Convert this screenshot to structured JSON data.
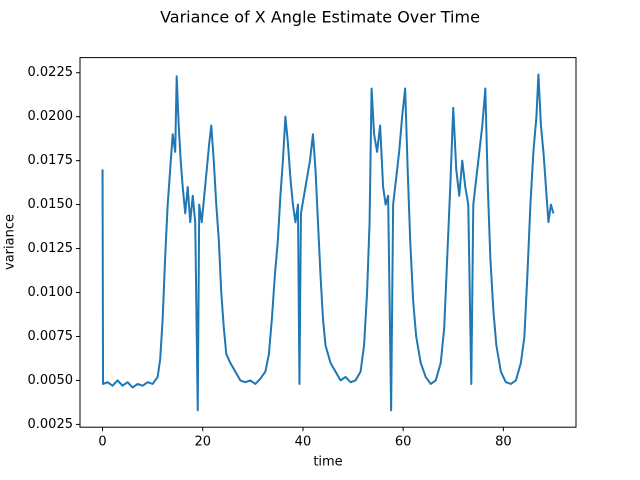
{
  "chart_data": {
    "type": "line",
    "title": "Variance of X Angle Estimate Over Time",
    "x_label": "time",
    "y_label": "variance",
    "x": [
      0,
      0.1,
      1,
      2,
      3,
      4,
      5,
      6,
      7,
      8,
      9,
      10,
      11,
      11.5,
      12,
      12.5,
      13,
      13.5,
      14,
      14.5,
      14.8,
      15.2,
      15.6,
      16,
      16.5,
      17,
      17.5,
      18,
      18.5,
      19,
      19.3,
      19.8,
      20.3,
      20.8,
      21.3,
      21.7,
      22.2,
      22.7,
      23.2,
      23.7,
      24.2,
      24.7,
      25.5,
      26.5,
      27.5,
      28.5,
      29.5,
      30.5,
      31.5,
      32.5,
      33.2,
      33.8,
      34.4,
      35,
      35.5,
      36,
      36.5,
      37,
      37.5,
      38,
      38.5,
      39,
      39.3,
      39.6,
      40.2,
      40.8,
      41.4,
      42,
      42.5,
      43,
      43.5,
      44,
      44.5,
      45.5,
      46.5,
      47.5,
      48.5,
      49.5,
      50.5,
      51.5,
      52.2,
      52.8,
      53.3,
      53.7,
      54.2,
      54.8,
      55.4,
      56,
      56.5,
      57,
      57.6,
      58,
      58.6,
      59.2,
      59.8,
      60.4,
      60.9,
      61.4,
      62,
      62.6,
      63.5,
      64.5,
      65.5,
      66.5,
      67.5,
      68.2,
      68.8,
      69.4,
      70,
      70.6,
      71.2,
      71.8,
      72.4,
      73,
      73.6,
      74,
      74.6,
      75.2,
      75.8,
      76.4,
      76.9,
      77.4,
      78,
      78.6,
      79.5,
      80.5,
      81.5,
      82.5,
      83.5,
      84.2,
      84.8,
      85.4,
      86,
      86.6,
      87,
      87.5,
      88,
      88.5,
      89,
      89.5,
      90
    ],
    "series": [
      {
        "name": "variance",
        "color": "#1f77b4",
        "values": [
          0.017,
          0.0048,
          0.0049,
          0.0047,
          0.005,
          0.0047,
          0.0049,
          0.0046,
          0.0048,
          0.0047,
          0.0049,
          0.0048,
          0.0052,
          0.0062,
          0.0085,
          0.012,
          0.015,
          0.017,
          0.019,
          0.018,
          0.0223,
          0.0195,
          0.0175,
          0.016,
          0.0145,
          0.016,
          0.014,
          0.0155,
          0.014,
          0.0033,
          0.015,
          0.014,
          0.0155,
          0.017,
          0.0185,
          0.0195,
          0.0175,
          0.015,
          0.013,
          0.01,
          0.008,
          0.0065,
          0.006,
          0.0055,
          0.005,
          0.0049,
          0.005,
          0.0048,
          0.0051,
          0.0055,
          0.0065,
          0.0085,
          0.011,
          0.013,
          0.0155,
          0.0175,
          0.02,
          0.0185,
          0.0165,
          0.015,
          0.014,
          0.015,
          0.0048,
          0.0145,
          0.0155,
          0.0165,
          0.0175,
          0.019,
          0.017,
          0.014,
          0.011,
          0.0085,
          0.007,
          0.006,
          0.0055,
          0.005,
          0.0052,
          0.0049,
          0.005,
          0.0055,
          0.007,
          0.01,
          0.014,
          0.0216,
          0.019,
          0.018,
          0.0195,
          0.016,
          0.015,
          0.0155,
          0.0033,
          0.015,
          0.0165,
          0.018,
          0.02,
          0.0216,
          0.017,
          0.013,
          0.0095,
          0.0075,
          0.006,
          0.0052,
          0.0048,
          0.005,
          0.006,
          0.008,
          0.012,
          0.016,
          0.0205,
          0.017,
          0.0155,
          0.0175,
          0.016,
          0.015,
          0.0048,
          0.015,
          0.0165,
          0.018,
          0.0195,
          0.0216,
          0.016,
          0.012,
          0.009,
          0.007,
          0.0055,
          0.0049,
          0.0048,
          0.005,
          0.006,
          0.0075,
          0.011,
          0.015,
          0.018,
          0.02,
          0.0224,
          0.0195,
          0.018,
          0.016,
          0.014,
          0.015,
          0.0145
        ]
      }
    ],
    "xlim": [
      -4.5,
      94.5
    ],
    "xticks": [
      0,
      20,
      40,
      60,
      80
    ],
    "ylim": [
      0.00234,
      0.02336
    ],
    "yticks": [
      0.0025,
      {
        "value": 0.005,
        "label": "0.0050"
      },
      0.0075,
      {
        "value": 0.01,
        "label": "0.0100"
      },
      0.0125,
      {
        "value": 0.015,
        "label": "0.0150"
      },
      0.0175,
      {
        "value": 0.02,
        "label": "0.0200"
      },
      0.0225
    ],
    "grid": false
  }
}
